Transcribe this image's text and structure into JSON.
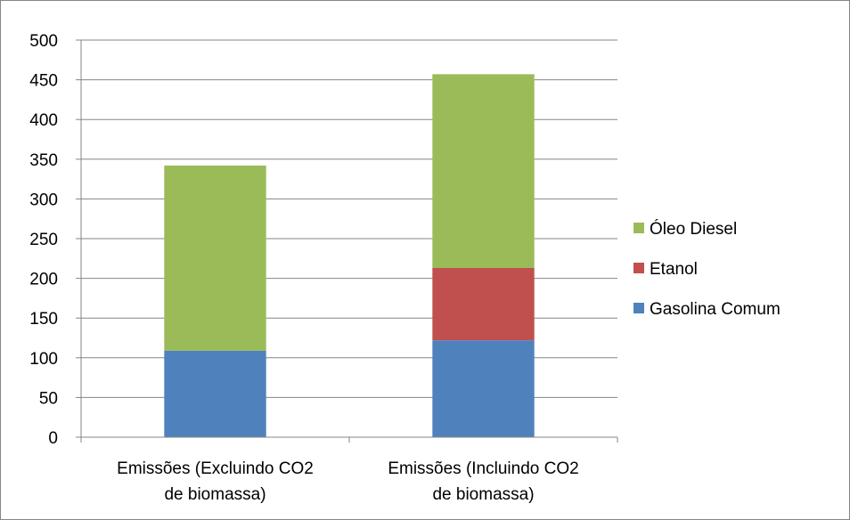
{
  "chart_data": {
    "type": "bar",
    "stacked": true,
    "title": "",
    "xlabel": "",
    "ylabel": "",
    "ylim": [
      0,
      500
    ],
    "yticks": [
      0,
      50,
      100,
      150,
      200,
      250,
      300,
      350,
      400,
      450,
      500
    ],
    "grid": true,
    "legend_position": "right",
    "categories": [
      [
        "Emissões (Excluindo CO2",
        "de biomassa)"
      ],
      [
        "Emissões (Incluindo CO2",
        "de biomassa)"
      ]
    ],
    "series": [
      {
        "name": "Gasolina Comum",
        "color": "#4f81bd",
        "values": [
          109,
          122
        ]
      },
      {
        "name": "Etanol",
        "color": "#c0504d",
        "values": [
          0,
          91
        ]
      },
      {
        "name": "Óleo Diesel",
        "color": "#9bbb59",
        "values": [
          233,
          244
        ]
      }
    ]
  }
}
